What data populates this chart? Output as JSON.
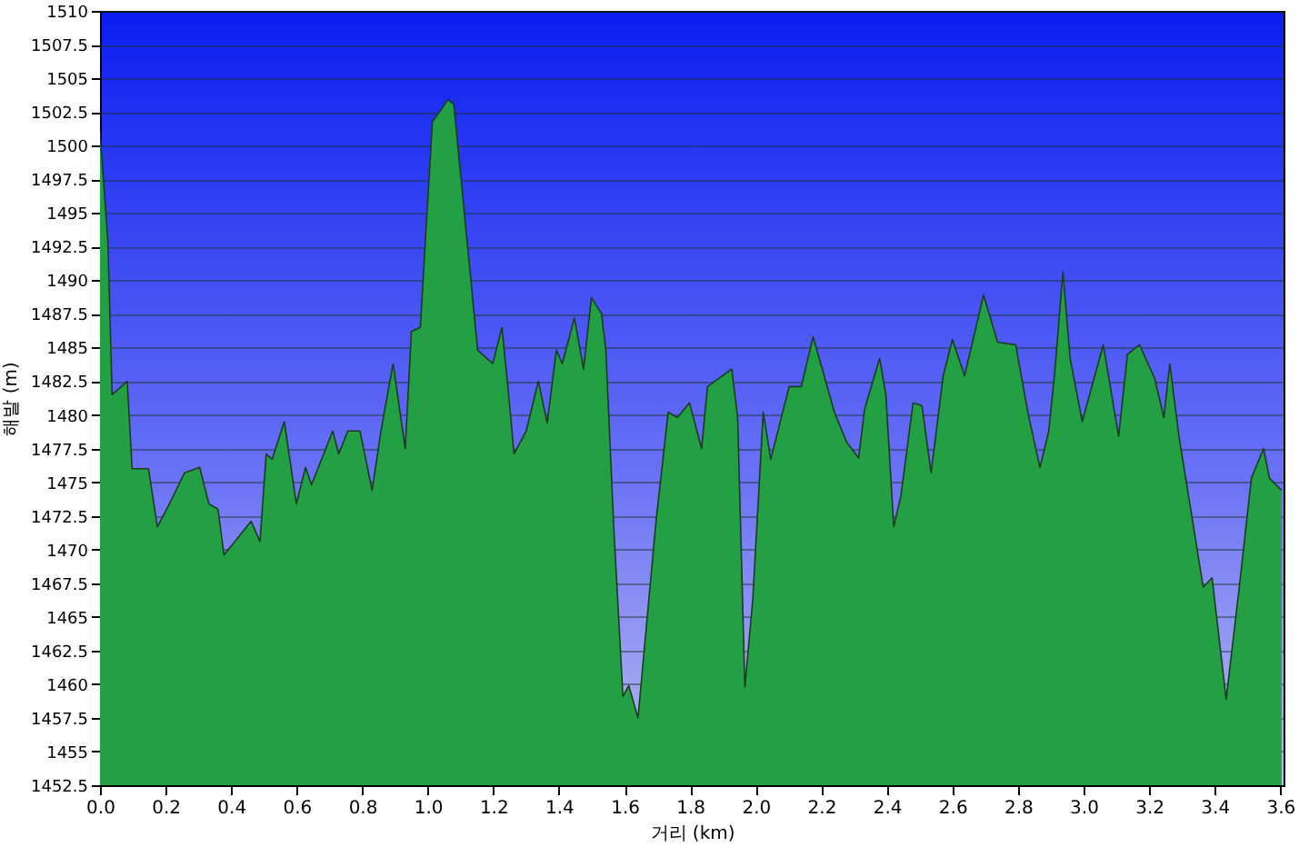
{
  "chart_data": {
    "type": "area",
    "xlabel": "거리 (km)",
    "ylabel": "해발 (m)",
    "x": [
      0,
      0.024,
      0.037,
      0.083,
      0.098,
      0.148,
      0.175,
      0.212,
      0.258,
      0.304,
      0.332,
      0.36,
      0.378,
      0.415,
      0.461,
      0.488,
      0.507,
      0.525,
      0.562,
      0.599,
      0.627,
      0.645,
      0.71,
      0.728,
      0.756,
      0.793,
      0.83,
      0.857,
      0.894,
      0.931,
      0.95,
      0.977,
      0.99,
      1.014,
      1.042,
      1.06,
      1.079,
      1.152,
      1.198,
      1.226,
      1.244,
      1.263,
      1.3,
      1.337,
      1.364,
      1.392,
      1.41,
      1.447,
      1.475,
      1.499,
      1.53,
      1.543,
      1.567,
      1.595,
      1.613,
      1.641,
      1.696,
      1.733,
      1.761,
      1.798,
      1.835,
      1.853,
      1.927,
      1.945,
      1.967,
      1.991,
      2.023,
      2.046,
      2.102,
      2.139,
      2.175,
      2.24,
      2.277,
      2.314,
      2.332,
      2.378,
      2.397,
      2.421,
      2.443,
      2.48,
      2.507,
      2.535,
      2.572,
      2.6,
      2.637,
      2.695,
      2.738,
      2.793,
      2.83,
      2.867,
      2.894,
      2.913,
      2.937,
      2.959,
      2.996,
      3.06,
      3.107,
      3.134,
      3.171,
      3.217,
      3.245,
      3.263,
      3.291,
      3.365,
      3.392,
      3.435,
      3.475,
      3.512,
      3.549,
      3.567,
      3.604
    ],
    "series": [
      {
        "color": "#23a043",
        "values": [
          1501,
          1492.9,
          1481.5,
          1482.5,
          1476,
          1476,
          1471.7,
          1473.4,
          1475.7,
          1476.1,
          1473.4,
          1473,
          1469.6,
          1470.7,
          1472.1,
          1470.6,
          1477.1,
          1476.7,
          1479.5,
          1473.4,
          1476.1,
          1474.8,
          1478.8,
          1477.1,
          1478.8,
          1478.8,
          1474.4,
          1478.8,
          1483.8,
          1477.5,
          1486.2,
          1486.5,
          1491.9,
          1501.8,
          1502.7,
          1503.4,
          1503.1,
          1484.8,
          1483.8,
          1486.5,
          1482.1,
          1477.1,
          1478.8,
          1482.5,
          1479.4,
          1484.8,
          1483.8,
          1487.2,
          1483.4,
          1488.7,
          1487.5,
          1484.8,
          1471.7,
          1459.1,
          1459.9,
          1457.5,
          1472.1,
          1480.2,
          1479.8,
          1480.9,
          1477.5,
          1482.1,
          1483.4,
          1479.8,
          1459.8,
          1466.3,
          1480.2,
          1476.7,
          1482.1,
          1482.1,
          1485.8,
          1480.2,
          1478,
          1476.8,
          1480.4,
          1484.2,
          1481.5,
          1471.7,
          1474,
          1480.9,
          1480.7,
          1475.7,
          1482.9,
          1485.6,
          1482.9,
          1488.9,
          1485.4,
          1485.2,
          1480.2,
          1476.1,
          1478.8,
          1483.4,
          1490.6,
          1484.2,
          1479.5,
          1485.2,
          1478.4,
          1484.5,
          1485.2,
          1482.7,
          1479.8,
          1483.8,
          1478.4,
          1467.2,
          1467.9,
          1458.9,
          1467.2,
          1475.3,
          1477.5,
          1475.3,
          1474.4
        ]
      }
    ],
    "xlim": [
      0,
      3.61
    ],
    "xticks": [
      {
        "value": 0,
        "label": "0.0"
      },
      0.2,
      0.4,
      0.6,
      0.8,
      {
        "value": 1,
        "label": "1.0"
      },
      1.2,
      1.4,
      1.6,
      1.8,
      {
        "value": 2,
        "label": "2.0"
      },
      2.2,
      2.4,
      2.6,
      2.8,
      {
        "value": 3,
        "label": "3.0"
      },
      3.2,
      3.4,
      3.6
    ],
    "ylim": [
      1452.5,
      1510
    ],
    "yticks": [
      1452.5,
      1455,
      1457.5,
      1460,
      1462.5,
      1465,
      1467.5,
      1470,
      1472.5,
      1475,
      1477.5,
      1480,
      1482.5,
      1485,
      1487.5,
      1490,
      1492.5,
      1495,
      1497.5,
      1500,
      1502.5,
      1505,
      1507.5,
      1510
    ],
    "grid": "y"
  }
}
